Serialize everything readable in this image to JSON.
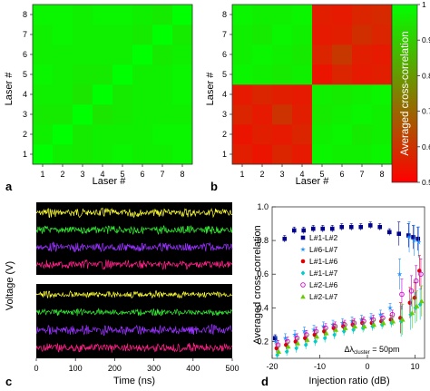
{
  "figure": {
    "panel_labels": [
      "a",
      "b",
      "c",
      "d"
    ],
    "colors": {
      "heat_low": "#ff0000",
      "heat_mid": "#808000",
      "heat_high": "#00ff00",
      "trace_yellow": "#ffff33",
      "trace_green": "#33ee33",
      "trace_purple": "#9933ff",
      "trace_magenta": "#ff2288",
      "scope_bg": "#000000"
    }
  },
  "chart_data": [
    {
      "type": "heatmap",
      "panel": "a",
      "x_categories": [
        "1",
        "2",
        "3",
        "4",
        "5",
        "6",
        "7",
        "8"
      ],
      "y_categories": [
        "1",
        "2",
        "3",
        "4",
        "5",
        "6",
        "7",
        "8"
      ],
      "xlabel": "Laser #",
      "ylabel": "Laser #",
      "values_note_rows_bottom_to_top": true,
      "values": [
        [
          1.0,
          0.97,
          0.96,
          0.97,
          0.98,
          0.97,
          0.97,
          0.98
        ],
        [
          0.97,
          1.0,
          0.96,
          0.97,
          0.97,
          0.97,
          0.98,
          0.98
        ],
        [
          0.96,
          0.96,
          1.0,
          0.95,
          0.96,
          0.97,
          0.97,
          0.97
        ],
        [
          0.97,
          0.97,
          0.95,
          1.0,
          0.96,
          0.97,
          0.97,
          0.98
        ],
        [
          0.98,
          0.97,
          0.96,
          0.96,
          1.0,
          0.97,
          0.97,
          0.98
        ],
        [
          0.97,
          0.97,
          0.97,
          0.97,
          0.97,
          1.0,
          0.96,
          0.97
        ],
        [
          0.97,
          0.98,
          0.97,
          0.97,
          0.97,
          0.96,
          1.0,
          0.96
        ],
        [
          0.98,
          0.98,
          0.97,
          0.98,
          0.98,
          0.97,
          0.96,
          1.0
        ]
      ]
    },
    {
      "type": "heatmap",
      "panel": "b",
      "x_categories": [
        "1",
        "2",
        "3",
        "4",
        "5",
        "6",
        "7",
        "8"
      ],
      "y_categories": [
        "1",
        "2",
        "3",
        "4",
        "5",
        "6",
        "7",
        "8"
      ],
      "xlabel": "Laser #",
      "ylabel": "Laser #",
      "values": [
        [
          0.56,
          0.54,
          0.57,
          0.55,
          0.98,
          0.97,
          0.97,
          0.98
        ],
        [
          0.54,
          0.56,
          0.55,
          0.57,
          0.97,
          0.98,
          0.96,
          0.97
        ],
        [
          0.57,
          0.55,
          0.6,
          0.56,
          0.96,
          0.97,
          0.98,
          0.97
        ],
        [
          0.55,
          0.57,
          0.56,
          0.55,
          0.97,
          0.96,
          0.97,
          0.98
        ],
        [
          0.98,
          0.97,
          0.96,
          0.97,
          0.54,
          0.57,
          0.55,
          0.56
        ],
        [
          0.97,
          0.98,
          0.97,
          0.96,
          0.57,
          0.61,
          0.56,
          0.55
        ],
        [
          0.97,
          0.96,
          0.98,
          0.97,
          0.55,
          0.56,
          0.59,
          0.57
        ],
        [
          0.98,
          0.97,
          0.97,
          0.98,
          0.56,
          0.55,
          0.57,
          0.58
        ]
      ],
      "colorbar": {
        "label": "Averaged cross-correlation",
        "ticks": [
          "1",
          "0.9",
          "0.8",
          "0.7",
          "0.6",
          "0.5"
        ],
        "range": [
          0.5,
          1.0
        ]
      }
    },
    {
      "type": "line",
      "panel": "c",
      "xlabel": "Time (ns)",
      "ylabel": "Voltage (V)",
      "x_ticks": [
        "0",
        "100",
        "200",
        "300",
        "400",
        "500"
      ],
      "xlim": [
        0,
        500
      ],
      "subplots": [
        {
          "series": [
            {
              "color": "#ffff33",
              "amplitude": 0.8
            },
            {
              "color": "#33ee33",
              "amplitude": 0.8
            },
            {
              "color": "#9933ff",
              "amplitude": 0.8
            },
            {
              "color": "#ff2288",
              "amplitude": 0.8
            }
          ]
        },
        {
          "series": [
            {
              "color": "#ffff33",
              "amplitude": 0.6
            },
            {
              "color": "#33ee33",
              "amplitude": 0.6
            },
            {
              "color": "#9933ff",
              "amplitude": 0.9
            },
            {
              "color": "#ff2288",
              "amplitude": 0.9
            }
          ]
        }
      ]
    },
    {
      "type": "scatter",
      "panel": "d",
      "xlabel": "Injection ratio (dB)",
      "ylabel": "Averaged cross-correlation",
      "xlim": [
        -20,
        12
      ],
      "ylim": [
        0.1,
        1.0
      ],
      "x_ticks": [
        "-20",
        "-10",
        "0",
        "10"
      ],
      "y_ticks": [
        "0.2",
        "0.4",
        "0.6",
        "0.8",
        "1.0"
      ],
      "annotation": "Δλ",
      "annotation_sub": "cluster",
      "annotation_tail": " = 50pm",
      "x": [
        -19,
        -17,
        -15,
        -13,
        -11,
        -9,
        -7,
        -5,
        -3,
        -1,
        1,
        3,
        5,
        7,
        9,
        10,
        11
      ],
      "series": [
        {
          "name": "L#1-L#2",
          "color": "#00008b",
          "marker": "square",
          "y": [
            0.22,
            0.81,
            0.86,
            0.86,
            0.87,
            0.87,
            0.87,
            0.88,
            0.88,
            0.88,
            0.89,
            0.88,
            0.85,
            0.84,
            0.83,
            0.82,
            0.81
          ]
        },
        {
          "name": "L#6-L#7",
          "color": "#1e90ff",
          "marker": "star",
          "y": [
            0.2,
            0.22,
            0.24,
            0.26,
            0.27,
            0.29,
            0.3,
            0.31,
            0.32,
            0.33,
            0.34,
            0.36,
            0.4,
            0.6,
            0.82,
            0.8,
            0.79
          ]
        },
        {
          "name": "L#1-L#6",
          "color": "#dd0000",
          "marker": "circle",
          "y": [
            0.16,
            0.18,
            0.2,
            0.22,
            0.24,
            0.26,
            0.28,
            0.29,
            0.3,
            0.31,
            0.31,
            0.32,
            0.33,
            0.34,
            0.43,
            0.46,
            0.62
          ]
        },
        {
          "name": "L#1-L#7",
          "color": "#00cccc",
          "marker": "diamond",
          "y": [
            0.12,
            0.14,
            0.16,
            0.18,
            0.2,
            0.22,
            0.24,
            0.26,
            0.27,
            0.28,
            0.29,
            0.3,
            0.31,
            0.32,
            0.36,
            0.4,
            0.42
          ]
        },
        {
          "name": "L#2-L#6",
          "color": "#cc00cc",
          "marker": "circle-open",
          "y": [
            0.18,
            0.2,
            0.22,
            0.24,
            0.26,
            0.28,
            0.29,
            0.3,
            0.31,
            0.32,
            0.33,
            0.34,
            0.36,
            0.48,
            0.5,
            0.56,
            0.6
          ]
        },
        {
          "name": "L#2-L#7",
          "color": "#66cc00",
          "marker": "triangle",
          "y": [
            0.14,
            0.17,
            0.19,
            0.21,
            0.23,
            0.25,
            0.27,
            0.28,
            0.29,
            0.29,
            0.3,
            0.31,
            0.32,
            0.33,
            0.37,
            0.41,
            0.44
          ]
        }
      ]
    }
  ]
}
